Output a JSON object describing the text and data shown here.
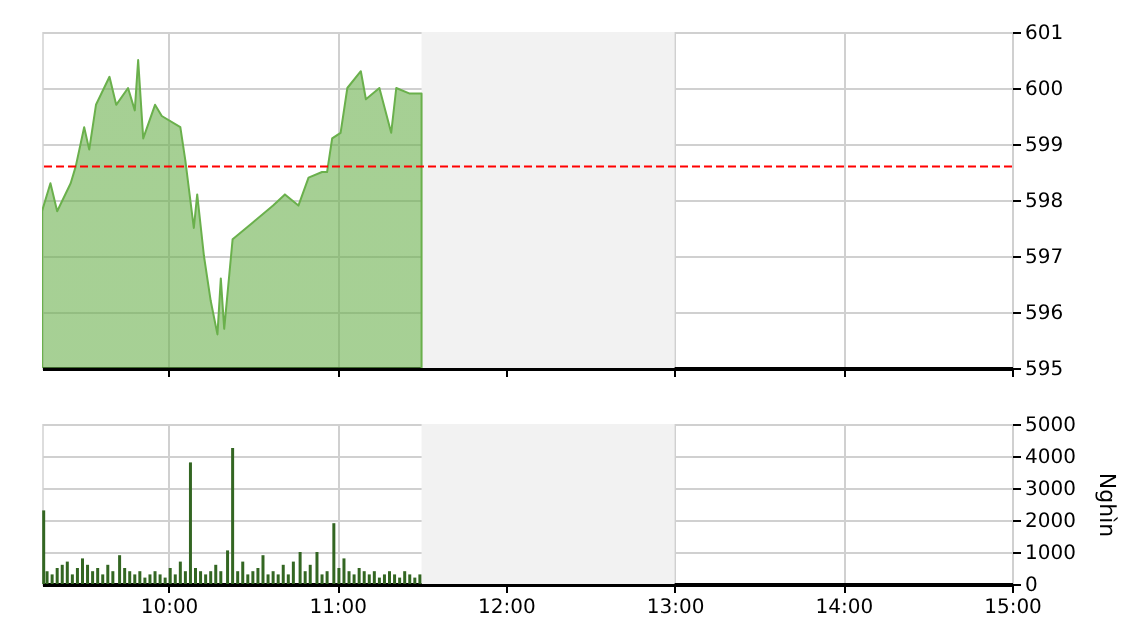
{
  "chart_data": [
    {
      "type": "area",
      "xlim": [
        9.25,
        15
      ],
      "ylim": [
        595,
        601
      ],
      "yticks": [
        595,
        596,
        597,
        598,
        599,
        600,
        601
      ],
      "xticks": [
        {
          "value": 10,
          "label": null
        },
        {
          "value": 11,
          "label": null
        },
        {
          "value": 12,
          "label": null
        },
        {
          "value": 13,
          "label": null
        },
        {
          "value": 14,
          "label": null
        },
        {
          "value": 15,
          "label": null
        }
      ],
      "tick_labels": "y",
      "grid": true,
      "series": [
        {
          "color": "#6ab04c",
          "x": [
            9.25,
            9.3,
            9.34,
            9.42,
            9.45,
            9.5,
            9.53,
            9.57,
            9.65,
            9.69,
            9.76,
            9.8,
            9.82,
            9.85,
            9.92,
            9.96,
            10.07,
            10.1,
            10.15,
            10.17,
            10.21,
            10.25,
            10.29,
            10.31,
            10.33,
            10.38,
            10.5,
            10.62,
            10.69,
            10.77,
            10.83,
            10.91,
            10.94,
            10.97,
            11.02,
            11.06,
            11.14,
            11.17,
            11.25,
            11.32,
            11.35,
            11.43,
            11.5
          ],
          "values": [
            597.8,
            598.3,
            597.8,
            598.3,
            598.6,
            599.3,
            598.9,
            599.7,
            600.2,
            599.7,
            600.0,
            599.6,
            600.5,
            599.1,
            599.7,
            599.5,
            599.3,
            598.7,
            597.5,
            598.1,
            597.0,
            596.2,
            595.6,
            596.6,
            595.7,
            597.3,
            597.6,
            597.9,
            598.1,
            597.9,
            598.4,
            598.5,
            598.5,
            599.1,
            599.2,
            600.0,
            600.3,
            599.8,
            600.0,
            599.2,
            600.0,
            599.9,
            599.9
          ]
        }
      ],
      "bands": [
        {
          "axis": "x",
          "from": 11.5,
          "to": 13,
          "color": "#f2f2f2"
        }
      ],
      "ref_lines": [
        {
          "axis": "y",
          "value": 598.6,
          "color": "#ff0000",
          "line_style": "dashed"
        }
      ]
    },
    {
      "type": "bar",
      "xlim": [
        9.25,
        15
      ],
      "ylim": [
        0,
        5000
      ],
      "yticks": [
        0,
        1000,
        2000,
        3000,
        4000,
        5000
      ],
      "ylabel": "Nghìn",
      "xticks": [
        {
          "value": 10,
          "label": "10:00"
        },
        {
          "value": 11,
          "label": "11:00"
        },
        {
          "value": 12,
          "label": "12:00"
        },
        {
          "value": 13,
          "label": "13:00"
        },
        {
          "value": 14,
          "label": "14:00"
        },
        {
          "value": 15,
          "label": "15:00"
        }
      ],
      "grid": true,
      "series": [
        {
          "color": "#336622",
          "x": [
            9.26,
            9.28,
            9.31,
            9.34,
            9.37,
            9.4,
            9.43,
            9.46,
            9.49,
            9.52,
            9.55,
            9.58,
            9.61,
            9.64,
            9.67,
            9.71,
            9.74,
            9.77,
            9.8,
            9.83,
            9.86,
            9.89,
            9.92,
            9.95,
            9.98,
            10.01,
            10.04,
            10.07,
            10.1,
            10.13,
            10.16,
            10.19,
            10.22,
            10.25,
            10.28,
            10.31,
            10.35,
            10.38,
            10.41,
            10.44,
            10.47,
            10.5,
            10.53,
            10.56,
            10.59,
            10.62,
            10.65,
            10.68,
            10.71,
            10.74,
            10.78,
            10.81,
            10.84,
            10.88,
            10.91,
            10.94,
            10.98,
            11.01,
            11.04,
            11.07,
            11.1,
            11.13,
            11.16,
            11.19,
            11.22,
            11.25,
            11.28,
            11.31,
            11.34,
            11.37,
            11.4,
            11.43,
            11.46,
            11.49
          ],
          "values": [
            2300,
            400,
            300,
            500,
            600,
            700,
            300,
            500,
            800,
            600,
            400,
            500,
            300,
            600,
            400,
            900,
            500,
            400,
            300,
            400,
            200,
            300,
            400,
            300,
            200,
            500,
            300,
            700,
            400,
            3800,
            500,
            400,
            300,
            400,
            600,
            400,
            1050,
            4250,
            400,
            700,
            300,
            400,
            500,
            900,
            300,
            400,
            300,
            600,
            300,
            700,
            1000,
            400,
            600,
            1000,
            300,
            400,
            1900,
            500,
            800,
            400,
            300,
            500,
            400,
            300,
            400,
            200,
            300,
            400,
            300,
            200,
            400,
            300,
            200,
            300
          ]
        }
      ],
      "bands": [
        {
          "axis": "x",
          "from": 11.5,
          "to": 13,
          "color": "#f2f2f2"
        }
      ]
    }
  ]
}
